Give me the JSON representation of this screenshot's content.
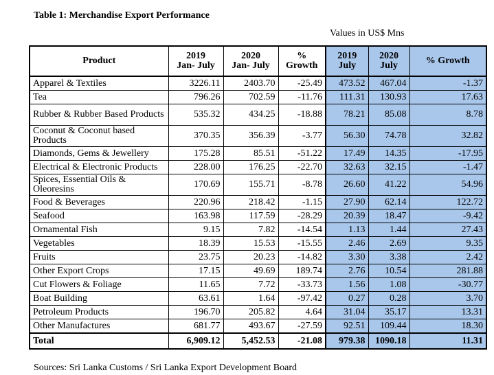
{
  "title": "Table 1: Merchandise Export Performance",
  "units": "Values in US$ Mns",
  "headers": {
    "product": "Product",
    "y2019_line1": "2019",
    "y2019_line2": "Jan- July",
    "y2020_line1": "2020",
    "y2020_line2": "Jan- July",
    "growth_line1": "%",
    "growth_line2": "Growth",
    "m2019_line1": "2019",
    "m2019_line2": "July",
    "m2020_line1": "2020",
    "m2020_line2": "July",
    "mgrowth": "% Growth"
  },
  "rows": [
    {
      "product": "Apparel & Textiles",
      "jj2019": "3226.11",
      "jj2020": "2403.70",
      "jjg": "-25.49",
      "j2019": "473.52",
      "j2020": "467.04",
      "jg": "-1.37"
    },
    {
      "product": "Tea",
      "jj2019": "796.26",
      "jj2020": "702.59",
      "jjg": "-11.76",
      "j2019": "111.31",
      "j2020": "130.93",
      "jg": "17.63"
    },
    {
      "product": "Rubber & Rubber Based Products",
      "jj2019": "535.32",
      "jj2020": "434.25",
      "jjg": "-18.88",
      "j2019": "78.21",
      "j2020": "85.08",
      "jg": "8.78",
      "tall": true
    },
    {
      "product": "Coconut & Coconut based Products",
      "jj2019": "370.35",
      "jj2020": "356.39",
      "jjg": "-3.77",
      "j2019": "56.30",
      "j2020": "74.78",
      "jg": "32.82",
      "tall": true
    },
    {
      "product": "Diamonds, Gems & Jewellery",
      "jj2019": "175.28",
      "jj2020": "85.51",
      "jjg": "-51.22",
      "j2019": "17.49",
      "j2020": "14.35",
      "jg": "-17.95"
    },
    {
      "product": "Electrical & Electronic Products",
      "jj2019": "228.00",
      "jj2020": "176.25",
      "jjg": "-22.70",
      "j2019": "32.63",
      "j2020": "32.15",
      "jg": "-1.47"
    },
    {
      "product": "Spices, Essential Oils & Oleoresins",
      "jj2019": "170.69",
      "jj2020": "155.71",
      "jjg": "-8.78",
      "j2019": "26.60",
      "j2020": "41.22",
      "jg": "54.96",
      "tall": true
    },
    {
      "product": "Food & Beverages",
      "jj2019": "220.96",
      "jj2020": "218.42",
      "jjg": "-1.15",
      "j2019": "27.90",
      "j2020": "62.14",
      "jg": "122.72"
    },
    {
      "product": "Seafood",
      "jj2019": "163.98",
      "jj2020": "117.59",
      "jjg": "-28.29",
      "j2019": "20.39",
      "j2020": "18.47",
      "jg": "-9.42"
    },
    {
      "product": "Ornamental Fish",
      "jj2019": "9.15",
      "jj2020": "7.82",
      "jjg": "-14.54",
      "j2019": "1.13",
      "j2020": "1.44",
      "jg": "27.43"
    },
    {
      "product": "Vegetables",
      "jj2019": "18.39",
      "jj2020": "15.53",
      "jjg": "-15.55",
      "j2019": "2.46",
      "j2020": "2.69",
      "jg": "9.35"
    },
    {
      "product": "Fruits",
      "jj2019": "23.75",
      "jj2020": "20.23",
      "jjg": "-14.82",
      "j2019": "3.30",
      "j2020": "3.38",
      "jg": "2.42"
    },
    {
      "product": "Other Export Crops",
      "jj2019": "17.15",
      "jj2020": "49.69",
      "jjg": "189.74",
      "j2019": "2.76",
      "j2020": "10.54",
      "jg": "281.88"
    },
    {
      "product": "Cut Flowers & Foliage",
      "jj2019": "11.65",
      "jj2020": "7.72",
      "jjg": "-33.73",
      "j2019": "1.56",
      "j2020": "1.08",
      "jg": "-30.77"
    },
    {
      "product": "Boat Building",
      "jj2019": "63.61",
      "jj2020": "1.64",
      "jjg": "-97.42",
      "j2019": "0.27",
      "j2020": "0.28",
      "jg": "3.70"
    },
    {
      "product": "Petroleum Products",
      "jj2019": "196.70",
      "jj2020": "205.82",
      "jjg": "4.64",
      "j2019": "31.04",
      "j2020": "35.17",
      "jg": "13.31"
    },
    {
      "product": "Other Manufactures",
      "jj2019": "681.77",
      "jj2020": "493.67",
      "jjg": "-27.59",
      "j2019": "92.51",
      "j2020": "109.44",
      "jg": "18.30"
    }
  ],
  "total": {
    "product": "Total",
    "jj2019": "6,909.12",
    "jj2020": "5,452.53",
    "jjg": "-21.08",
    "j2019": "979.38",
    "j2020": "1090.18",
    "jg": "11.31"
  },
  "source": "Sources:  Sri Lanka Customs / Sri Lanka Export Development Board",
  "colors": {
    "highlight": "#a9c7eb"
  }
}
